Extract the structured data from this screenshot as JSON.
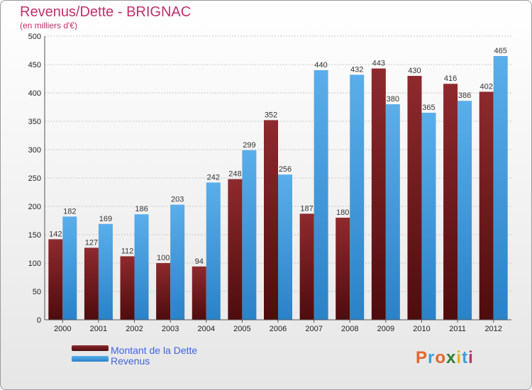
{
  "header": {
    "title": "Revenus/Dette - BRIGNAC",
    "subtitle": "(en milliers d'€)"
  },
  "logo": {
    "text": "Proxiti",
    "colors": [
      "#e8632b",
      "#3aa0d8",
      "#e8632b",
      "#2e7d32",
      "#e3b21a",
      "#3aa0d8",
      "#c0306a"
    ]
  },
  "legend": {
    "position": "bottom-left",
    "items": [
      {
        "label": "Montant de la Dette",
        "color": "#7a1d20"
      },
      {
        "label": "Revenus",
        "color": "#3c9be0"
      }
    ]
  },
  "chart_data": {
    "type": "bar",
    "title": "Revenus/Dette - BRIGNAC",
    "subtitle": "(en milliers d'€)",
    "categories": [
      "2000",
      "2001",
      "2002",
      "2003",
      "2004",
      "2005",
      "2006",
      "2007",
      "2008",
      "2009",
      "2010",
      "2011",
      "2012"
    ],
    "series": [
      {
        "name": "Montant de la Dette",
        "color": "#7a1d20",
        "values": [
          142,
          127,
          112,
          100,
          94,
          248,
          352,
          187,
          180,
          443,
          430,
          416,
          402
        ]
      },
      {
        "name": "Revenus",
        "color": "#3c9be0",
        "values": [
          182,
          169,
          186,
          203,
          242,
          299,
          256,
          440,
          432,
          380,
          365,
          386,
          465
        ]
      }
    ],
    "ylim": [
      0,
      500
    ],
    "yticks": [
      0,
      50,
      100,
      150,
      200,
      250,
      300,
      350,
      400,
      450,
      500
    ],
    "grid": true,
    "legend_position": "bottom-left"
  }
}
